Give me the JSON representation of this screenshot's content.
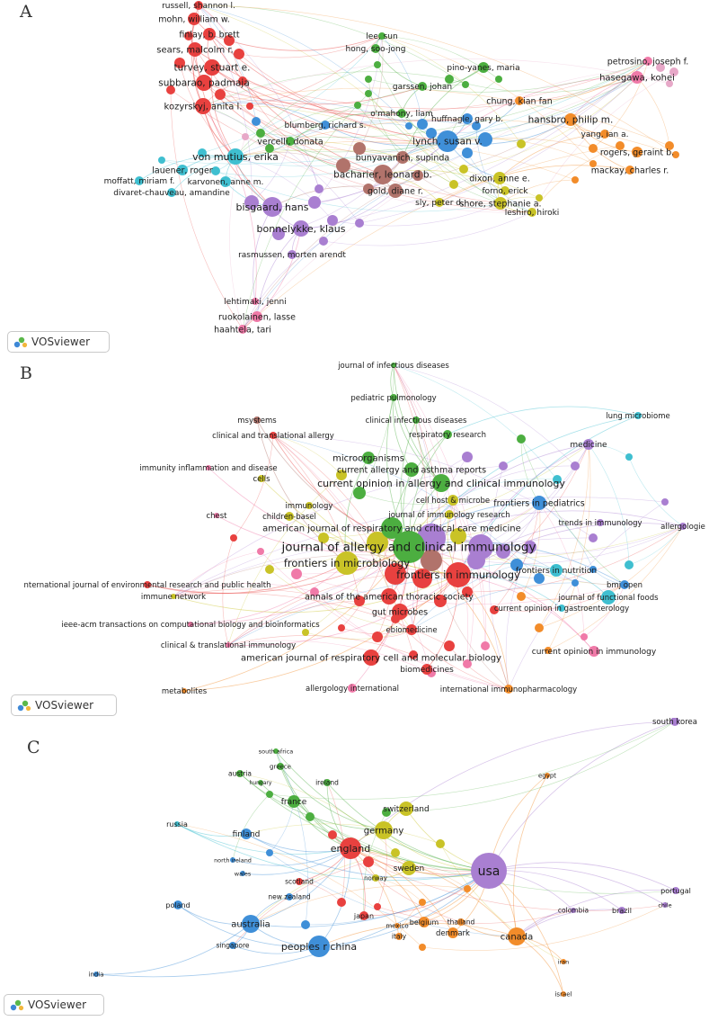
{
  "logo_text": "VOSviewer",
  "panels": {
    "A": {
      "letter": "A",
      "labels": [
        {
          "id": "russell",
          "text": "russell, shannon l."
        },
        {
          "id": "mohn",
          "text": "mohn, william w."
        },
        {
          "id": "finlay",
          "text": "finlay, b. brett"
        },
        {
          "id": "sears",
          "text": "sears, malcolm r."
        },
        {
          "id": "turvey",
          "text": "turvey, stuart e."
        },
        {
          "id": "subbarao",
          "text": "subbarao, padmaja"
        },
        {
          "id": "kozyrskyj",
          "text": "kozyrskyj, anita l."
        },
        {
          "id": "lee",
          "text": "lee, sun"
        },
        {
          "id": "hong",
          "text": "hong, soo-jong"
        },
        {
          "id": "pino",
          "text": "pino-yanes, maria"
        },
        {
          "id": "garssen",
          "text": "garssen, johan"
        },
        {
          "id": "omahony",
          "text": "o'mahony, liam"
        },
        {
          "id": "blumberg",
          "text": "blumberg, richard s."
        },
        {
          "id": "vercelli",
          "text": "vercelli, donata"
        },
        {
          "id": "vonmutius",
          "text": "von mutius, erika"
        },
        {
          "id": "lauener",
          "text": "lauener, roger"
        },
        {
          "id": "moffatt",
          "text": "moffatt, miriam f."
        },
        {
          "id": "karvonen",
          "text": "karvonen, anne m."
        },
        {
          "id": "divaret",
          "text": "divaret-chauveau, amandine"
        },
        {
          "id": "huffnagle",
          "text": "huffnagle, gary b."
        },
        {
          "id": "lynch",
          "text": "lynch, susan v."
        },
        {
          "id": "bunyavanich",
          "text": "bunyavanich, supinda"
        },
        {
          "id": "bacharier",
          "text": "bacharier, leonard b."
        },
        {
          "id": "gold",
          "text": "gold, diane r."
        },
        {
          "id": "dixon",
          "text": "dixon, anne e."
        },
        {
          "id": "forno",
          "text": "forno, erick"
        },
        {
          "id": "sly",
          "text": "sly, peter d."
        },
        {
          "id": "shore",
          "text": "shore, stephanie a."
        },
        {
          "id": "leshiro",
          "text": "leshiro, hiroki"
        },
        {
          "id": "chung",
          "text": "chung, kian fan"
        },
        {
          "id": "hansbro",
          "text": "hansbro, philip m."
        },
        {
          "id": "yang",
          "text": "yang, ian a."
        },
        {
          "id": "rogers",
          "text": "rogers, geraint b."
        },
        {
          "id": "mackay",
          "text": "mackay, charles r."
        },
        {
          "id": "petrosino",
          "text": "petrosino, joseph f."
        },
        {
          "id": "hasegawa",
          "text": "hasegawa, kohei"
        },
        {
          "id": "bisgaard",
          "text": "bisgaard, hans"
        },
        {
          "id": "bonnelykke",
          "text": "bonnelykke, klaus"
        },
        {
          "id": "rasmussen",
          "text": "rasmussen, morten arendt"
        },
        {
          "id": "lehtimaki",
          "text": "lehtimaki, jenni"
        },
        {
          "id": "ruokolainen",
          "text": "ruokolainen, lasse"
        },
        {
          "id": "haahtela",
          "text": "haahtela, tari"
        }
      ]
    },
    "B": {
      "letter": "B",
      "labels": [
        {
          "id": "jid",
          "text": "journal of infectious diseases"
        },
        {
          "id": "pedpulm",
          "text": "pediatric pulmonology"
        },
        {
          "id": "msystems",
          "text": "msystems"
        },
        {
          "id": "cid",
          "text": "clinical infectious diseases"
        },
        {
          "id": "lungmb",
          "text": "lung microbiome"
        },
        {
          "id": "resres",
          "text": "respiratory research"
        },
        {
          "id": "cta",
          "text": "clinical and translational allergy"
        },
        {
          "id": "medicine",
          "text": "medicine"
        },
        {
          "id": "microorg",
          "text": "microorganisms"
        },
        {
          "id": "imid",
          "text": "immunity inflammation and disease"
        },
        {
          "id": "caar",
          "text": "current allergy and asthma reports"
        },
        {
          "id": "cells",
          "text": "cells"
        },
        {
          "id": "coaci",
          "text": "current opinion in allergy and clinical immunology"
        },
        {
          "id": "chm",
          "text": "cell host & microbe"
        },
        {
          "id": "fped",
          "text": "frontiers in pediatrics"
        },
        {
          "id": "immunology",
          "text": "immunology"
        },
        {
          "id": "jir",
          "text": "journal of immunology research"
        },
        {
          "id": "chest",
          "text": "chest"
        },
        {
          "id": "childbasel",
          "text": "children-basel"
        },
        {
          "id": "trendsimm",
          "text": "trends in immunology"
        },
        {
          "id": "allergologie",
          "text": "allergologie"
        },
        {
          "id": "ajrccm",
          "text": "american journal of respiratory and critical care medicine"
        },
        {
          "id": "jaci",
          "text": "journal of allergy and clinical immunology"
        },
        {
          "id": "fmicro",
          "text": "frontiers in microbiology"
        },
        {
          "id": "fnutr",
          "text": "frontiers in nutrition"
        },
        {
          "id": "fimm",
          "text": "frontiers in immunology"
        },
        {
          "id": "ijerph",
          "text": "nternational journal of environmental research and public health"
        },
        {
          "id": "bmjopen",
          "text": "bmj open"
        },
        {
          "id": "immnet",
          "text": "immune network"
        },
        {
          "id": "aats",
          "text": "annals of the american thoracic society"
        },
        {
          "id": "jff",
          "text": "journal of functional foods"
        },
        {
          "id": "gutmicrobes",
          "text": "gut microbes"
        },
        {
          "id": "cog",
          "text": "current opinion in gastroenterology"
        },
        {
          "id": "ieeeacm",
          "text": "ieee-acm transactions on computational biology and bioinformatics"
        },
        {
          "id": "ebiomed",
          "text": "ebiomedicine"
        },
        {
          "id": "ctimm",
          "text": "clinical & translational immunology"
        },
        {
          "id": "coimm",
          "text": "current opinion in immunology"
        },
        {
          "id": "ajrcmb",
          "text": "american journal of respiratory cell and molecular biology"
        },
        {
          "id": "biomedicines",
          "text": "biomedicines"
        },
        {
          "id": "metabolites",
          "text": "metabolites"
        },
        {
          "id": "allergint",
          "text": "allergology international"
        },
        {
          "id": "intimmpharm",
          "text": "international immunopharmacology"
        }
      ]
    },
    "C": {
      "letter": "C",
      "labels": [
        {
          "id": "southkorea",
          "text": "south korea"
        },
        {
          "id": "southafrica",
          "text": "south africa"
        },
        {
          "id": "greece",
          "text": "greece"
        },
        {
          "id": "austria",
          "text": "austria"
        },
        {
          "id": "ireland",
          "text": "ireland"
        },
        {
          "id": "hungary",
          "text": "hungary"
        },
        {
          "id": "egypt",
          "text": "egypt"
        },
        {
          "id": "france",
          "text": "france"
        },
        {
          "id": "russia",
          "text": "russia"
        },
        {
          "id": "switzerland",
          "text": "switzerland"
        },
        {
          "id": "finland",
          "text": "finland"
        },
        {
          "id": "germany",
          "text": "germany"
        },
        {
          "id": "england",
          "text": "england"
        },
        {
          "id": "northireland",
          "text": "north ireland"
        },
        {
          "id": "usa",
          "text": "usa"
        },
        {
          "id": "sweden",
          "text": "sweden"
        },
        {
          "id": "wales",
          "text": "wales"
        },
        {
          "id": "scotland",
          "text": "scotland"
        },
        {
          "id": "norway",
          "text": "norway"
        },
        {
          "id": "newzealand",
          "text": "new zealand"
        },
        {
          "id": "portugal",
          "text": "portugal"
        },
        {
          "id": "chile",
          "text": "chile"
        },
        {
          "id": "poland",
          "text": "poland"
        },
        {
          "id": "brazil",
          "text": "brazil"
        },
        {
          "id": "colombia",
          "text": "colombia"
        },
        {
          "id": "japan",
          "text": "japan"
        },
        {
          "id": "belgium",
          "text": "belgium"
        },
        {
          "id": "thailand",
          "text": "thailand"
        },
        {
          "id": "australia",
          "text": "australia"
        },
        {
          "id": "mexico",
          "text": "mexico"
        },
        {
          "id": "denmark",
          "text": "denmark"
        },
        {
          "id": "italy",
          "text": "italy"
        },
        {
          "id": "canada",
          "text": "canada"
        },
        {
          "id": "peopleschina",
          "text": "peoples r china"
        },
        {
          "id": "singapore",
          "text": "singapore"
        },
        {
          "id": "iran",
          "text": "iran"
        },
        {
          "id": "india",
          "text": "india"
        },
        {
          "id": "israel",
          "text": "israel"
        }
      ]
    }
  }
}
